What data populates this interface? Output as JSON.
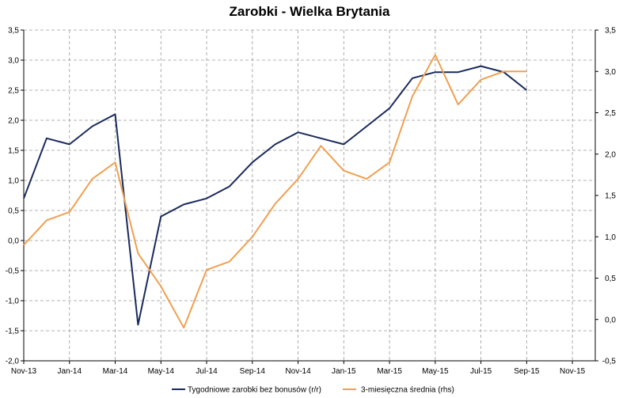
{
  "chart_data": {
    "type": "line",
    "title": "Zarobki - Wielka Brytania",
    "xlabel": "",
    "ylabel": "",
    "grid": true,
    "legend_position": "bottom",
    "x_tick_labels": [
      "Nov-13",
      "Jan-14",
      "Mar-14",
      "May-14",
      "Jul-14",
      "Sep-14",
      "Nov-14",
      "Jan-15",
      "Mar-15",
      "May-15",
      "Jul-15",
      "Sep-15",
      "Nov-15"
    ],
    "x_range": [
      "Nov-13",
      "Dec-15"
    ],
    "y_left": {
      "range": [
        -2.0,
        3.5
      ],
      "ticks": [
        3.5,
        3.0,
        2.5,
        2.0,
        1.5,
        1.0,
        0.5,
        0.0,
        -0.5,
        -1.0,
        -1.5,
        -2.0
      ],
      "tick_labels": [
        "3,5",
        "3,0",
        "2,5",
        "2,0",
        "1,5",
        "1,0",
        "0,5",
        "0,0",
        "-0,5",
        "-1,0",
        "-1,5",
        "-2,0"
      ]
    },
    "y_right": {
      "range": [
        -0.5,
        3.5
      ],
      "ticks": [
        3.5,
        3.0,
        2.5,
        2.0,
        1.5,
        1.0,
        0.5,
        0.0,
        -0.5
      ],
      "tick_labels": [
        "3,5",
        "3,0",
        "2,5",
        "2,0",
        "1,5",
        "1,0",
        "0,5",
        "0,0",
        "-0,5"
      ]
    },
    "x": [
      "Nov-13",
      "Dec-13",
      "Jan-14",
      "Feb-14",
      "Mar-14",
      "Apr-14",
      "May-14",
      "Jun-14",
      "Jul-14",
      "Aug-14",
      "Sep-14",
      "Oct-14",
      "Nov-14",
      "Dec-14",
      "Jan-15",
      "Feb-15",
      "Mar-15",
      "Apr-15",
      "May-15",
      "Jun-15",
      "Jul-15",
      "Aug-15",
      "Sep-15"
    ],
    "series": [
      {
        "name": "Tygodniowe zarobki bez bonusów (r/r)",
        "axis": "left",
        "color": "#1a2a5c",
        "values": [
          0.7,
          1.7,
          1.6,
          1.9,
          2.1,
          -1.4,
          0.4,
          0.6,
          0.7,
          0.9,
          1.3,
          1.6,
          1.8,
          1.7,
          1.6,
          1.9,
          2.2,
          2.7,
          2.8,
          2.8,
          2.9,
          2.8,
          2.5
        ]
      },
      {
        "name": "3-miesięczna średnia (rhs)",
        "axis": "right",
        "color": "#f0a050",
        "values": [
          0.9,
          1.2,
          1.3,
          1.7,
          1.9,
          0.8,
          0.4,
          -0.1,
          0.6,
          0.7,
          1.0,
          1.4,
          1.7,
          2.1,
          1.8,
          1.7,
          1.9,
          2.7,
          3.2,
          2.6,
          2.9,
          3.0,
          3.0
        ]
      }
    ]
  }
}
